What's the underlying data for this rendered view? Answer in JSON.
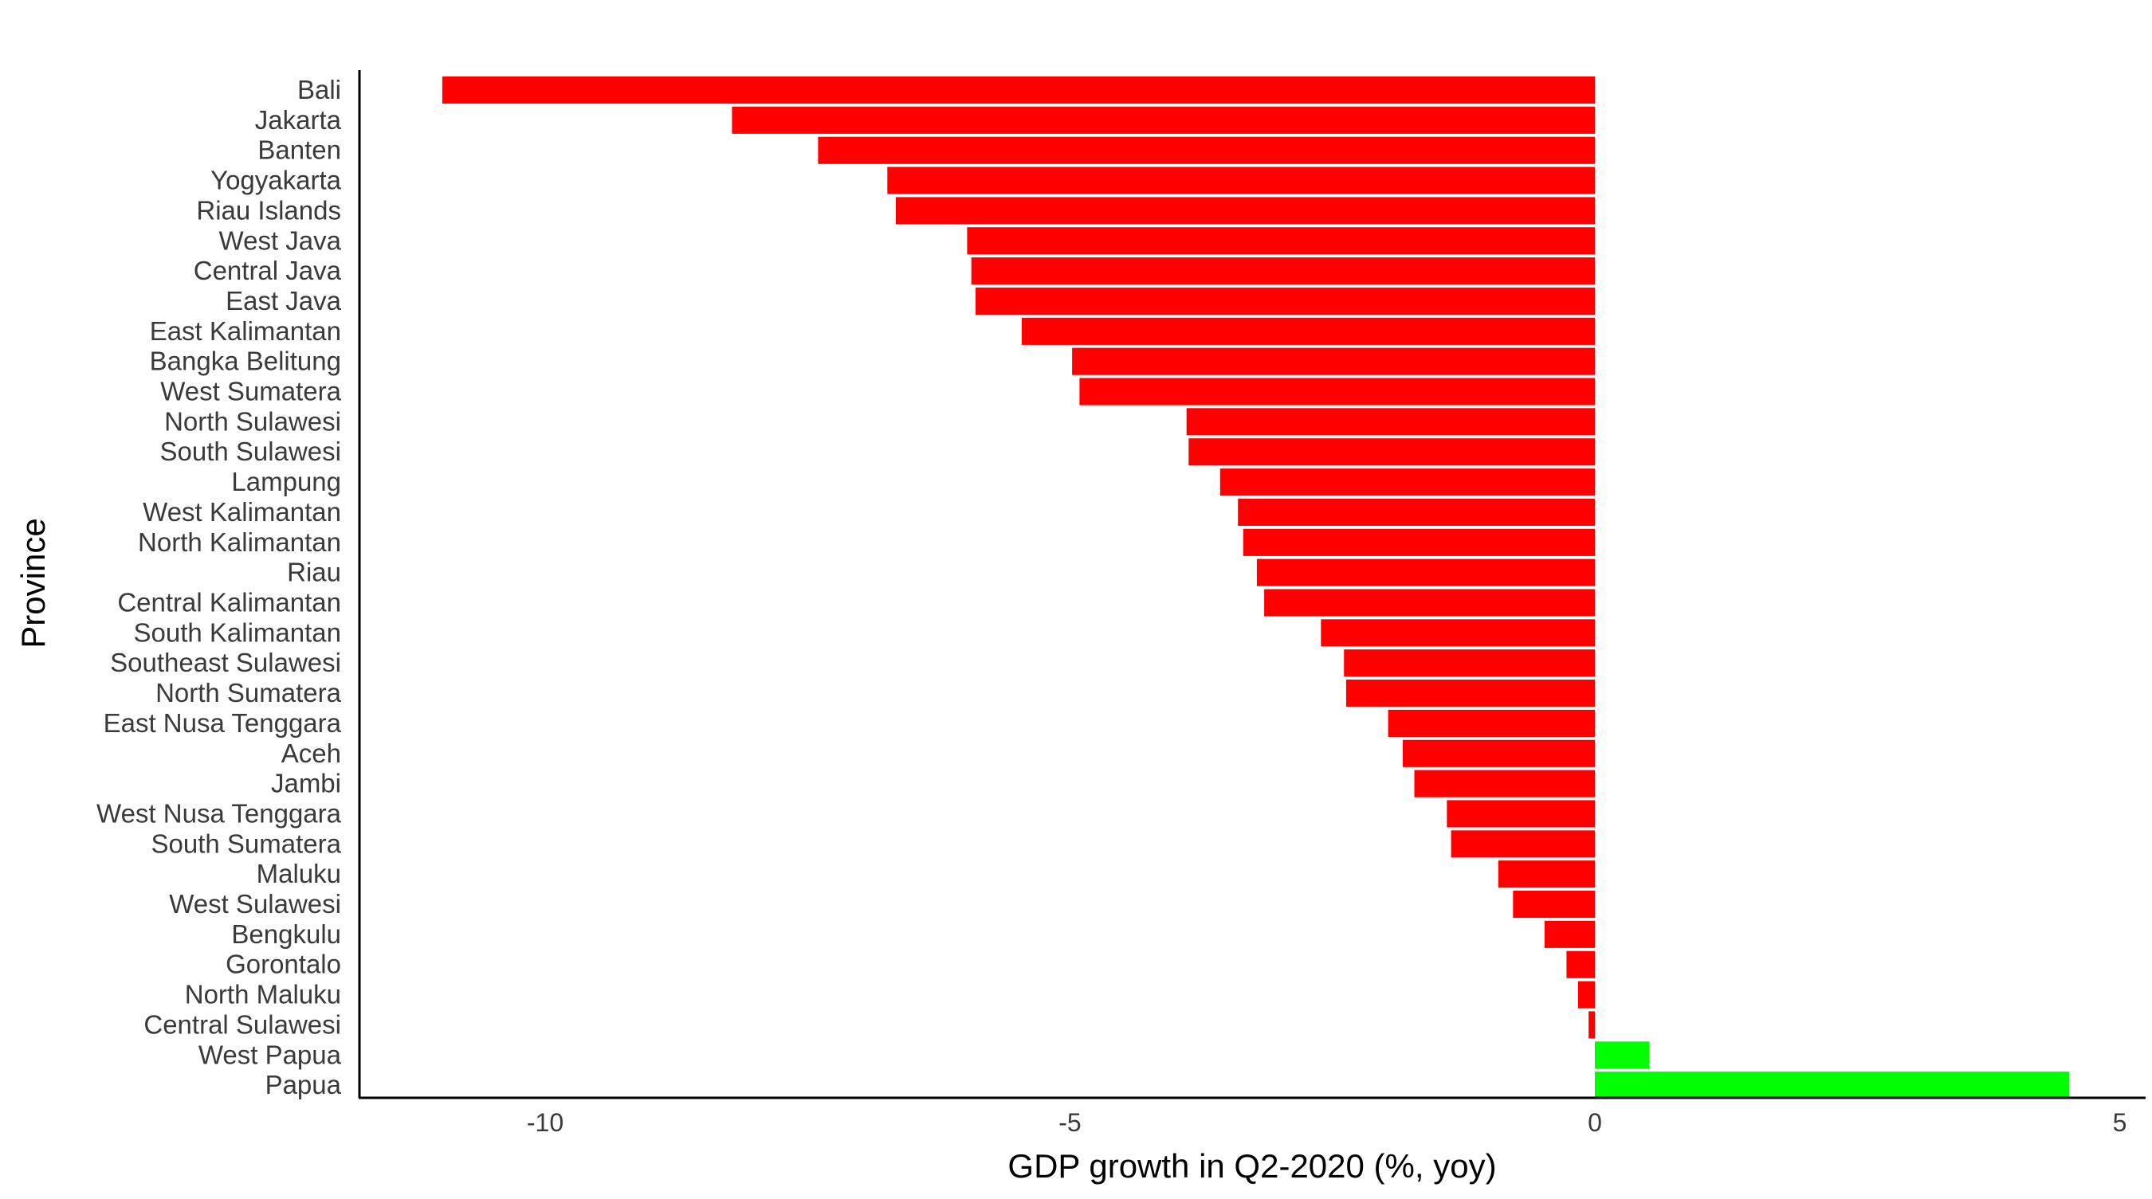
{
  "chart_data": {
    "type": "bar",
    "orientation": "horizontal",
    "title": "",
    "xlabel": "GDP growth in Q2-2020 (%, yoy)",
    "ylabel": "Province",
    "xlim": [
      -12.2,
      5.3
    ],
    "xticks": [
      -10,
      -5,
      0,
      5
    ],
    "xtick_labels": [
      "-10",
      "-5",
      "0",
      "5"
    ],
    "grid": false,
    "legend": "none",
    "colors": {
      "negative": "#ff0000",
      "positive": "#00ff00",
      "axis": "#000000"
    },
    "categories": [
      "Bali",
      "Jakarta",
      "Banten",
      "Yogyakarta",
      "Riau Islands",
      "West Java",
      "Central Java",
      "East Java",
      "East Kalimantan",
      "Bangka Belitung",
      "West Sumatera",
      "North Sulawesi",
      "South Sulawesi",
      "Lampung",
      "West Kalimantan",
      "North Kalimantan",
      "Riau",
      "Central Kalimantan",
      "South Kalimantan",
      "Southeast Sulawesi",
      "North Sumatera",
      "East Nusa Tenggara",
      "Aceh",
      "Jambi",
      "West Nusa Tenggara",
      "South Sumatera",
      "Maluku",
      "West Sulawesi",
      "Bengkulu",
      "Gorontalo",
      "North Maluku",
      "Central Sulawesi",
      "West Papua",
      "Papua"
    ],
    "values": [
      -10.98,
      -8.22,
      -7.4,
      -6.74,
      -6.66,
      -5.98,
      -5.94,
      -5.9,
      -5.46,
      -4.98,
      -4.91,
      -3.89,
      -3.87,
      -3.57,
      -3.4,
      -3.35,
      -3.22,
      -3.15,
      -2.61,
      -2.39,
      -2.37,
      -1.97,
      -1.83,
      -1.72,
      -1.41,
      -1.37,
      -0.92,
      -0.78,
      -0.48,
      -0.27,
      -0.16,
      -0.06,
      0.52,
      4.52
    ]
  }
}
